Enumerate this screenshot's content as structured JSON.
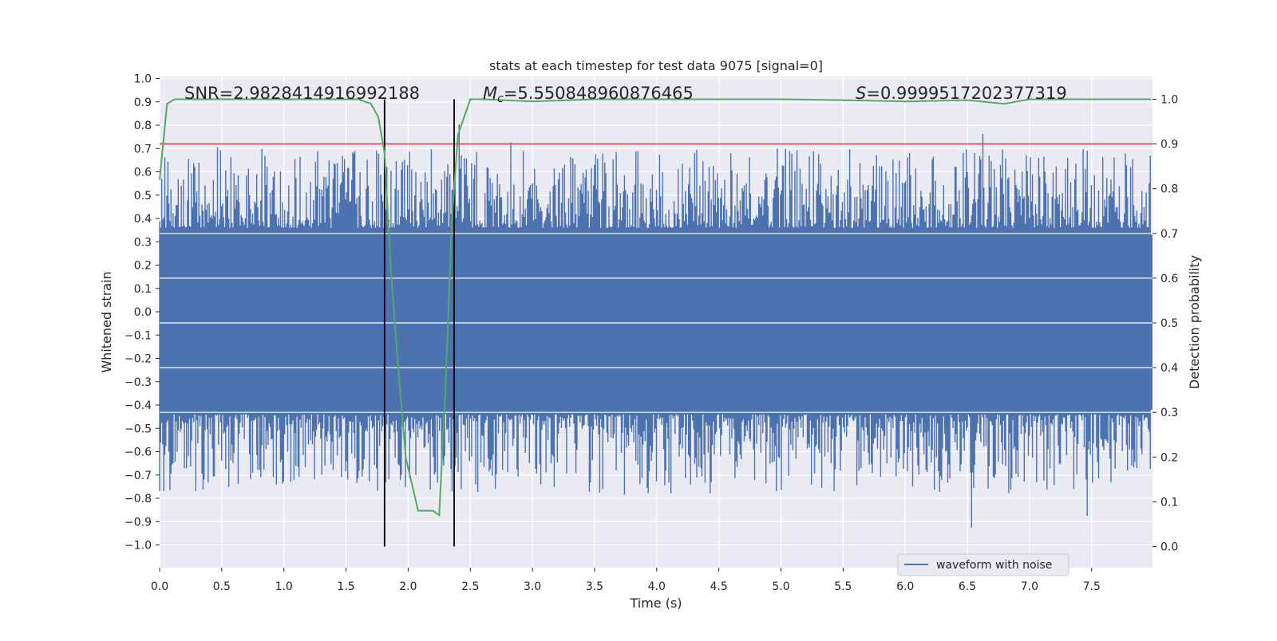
{
  "chart_data": {
    "type": "line",
    "title": "stats at each timestep for test data 9075 [signal=0]",
    "xlabel": "Time (s)",
    "ylabel_left": "Whitened strain",
    "ylabel_right": "Detection probability",
    "xlim": [
      0.0,
      8.0
    ],
    "ylim_left": [
      -1.1,
      1.05
    ],
    "ylim_right": [
      -0.05,
      1.045
    ],
    "xticks": [
      "0.0",
      "0.5",
      "1.0",
      "1.5",
      "2.0",
      "2.5",
      "3.0",
      "3.5",
      "4.0",
      "4.5",
      "5.0",
      "5.5",
      "6.0",
      "6.5",
      "7.0",
      "7.5"
    ],
    "yticks_left": [
      "1.0",
      "0.9",
      "0.8",
      "0.7",
      "0.6",
      "0.5",
      "0.4",
      "0.3",
      "0.2",
      "0.1",
      "0.0",
      "−0.1",
      "−0.2",
      "−0.3",
      "−0.4",
      "−0.5",
      "−0.6",
      "−0.7",
      "−0.8",
      "−0.9",
      "−1.0"
    ],
    "yticks_right": [
      "1.0",
      "0.9",
      "0.8",
      "0.7",
      "0.6",
      "0.5",
      "0.4",
      "0.3",
      "0.2",
      "0.1",
      "0.0"
    ],
    "annotations": {
      "snr": "SNR=2.9828414916992188",
      "mc_symbol": "M",
      "mc_sub": "c",
      "mc_value": "=5.550848960876465",
      "s_symbol": "S",
      "s_value": "=0.9999517202377319"
    },
    "threshold": {
      "value": 0.9,
      "axis": "right",
      "color": "#c44e52"
    },
    "vlines": [
      1.81,
      2.37
    ],
    "waveform": {
      "name": "waveform with noise",
      "color": "#4c72b0",
      "dense_band": [
        -0.42,
        0.33
      ],
      "sample_count": 960
    },
    "probability": {
      "name": "Detection probability",
      "color": "#55a868",
      "x": [
        0.0,
        0.06,
        0.12,
        0.3,
        0.6,
        1.0,
        1.4,
        1.6,
        1.7,
        1.76,
        1.81,
        1.86,
        1.92,
        1.98,
        2.03,
        2.08,
        2.2,
        2.25,
        2.3,
        2.35,
        2.4,
        2.45,
        2.5,
        2.6,
        3.0,
        3.5,
        4.0,
        5.0,
        5.5,
        6.0,
        6.5,
        6.8,
        6.9,
        7.0,
        7.5,
        7.98
      ],
      "y": [
        0.82,
        0.99,
        1.0,
        1.0,
        1.0,
        1.0,
        1.0,
        1.0,
        0.99,
        0.96,
        0.88,
        0.62,
        0.4,
        0.2,
        0.14,
        0.08,
        0.08,
        0.07,
        0.35,
        0.72,
        0.92,
        0.96,
        1.0,
        1.0,
        0.995,
        1.0,
        1.0,
        1.0,
        0.998,
        0.995,
        0.998,
        0.99,
        0.995,
        1.0,
        1.0,
        1.0
      ]
    },
    "legend": {
      "label": "waveform with noise",
      "position": "lower-right"
    },
    "grid": true
  },
  "colors": {
    "axes_bg": "#eaeaf2",
    "grid": "#ffffff",
    "waveform": "#4c72b0",
    "probability": "#55a868",
    "threshold": "#c44e52",
    "vline": "#000000"
  }
}
